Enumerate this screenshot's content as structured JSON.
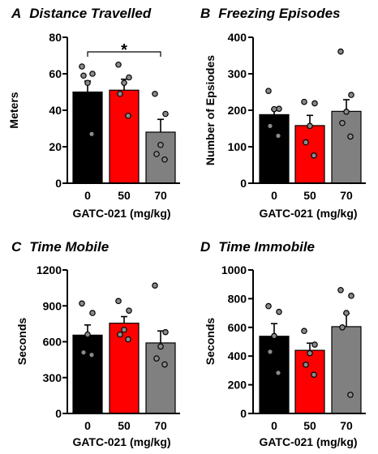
{
  "chart_data": [
    {
      "type": "bar",
      "panel_letter": "A",
      "title": "Distance Travelled",
      "xlabel": "GATC-021 (mg/kg)",
      "ylabel": "Meters",
      "categories": [
        "0",
        "50",
        "70"
      ],
      "values": [
        50,
        51,
        28
      ],
      "errors": [
        6,
        6,
        7
      ],
      "colors": [
        "#000000",
        "#ff0000",
        "#808080"
      ],
      "points": [
        [
          64,
          60,
          55,
          59,
          27
        ],
        [
          65,
          58,
          55,
          49,
          37
        ],
        [
          49,
          38,
          21,
          16,
          13
        ]
      ],
      "ylim": [
        0,
        80
      ],
      "yticks": [
        0,
        20,
        40,
        60,
        80
      ],
      "significance": {
        "label": "*",
        "from": 0,
        "to": 2,
        "y": 72
      }
    },
    {
      "type": "bar",
      "panel_letter": "B",
      "title": "Freezing Episodes",
      "xlabel": "GATC-021 (mg/kg)",
      "ylabel": "Number of Epsiodes",
      "categories": [
        "0",
        "50",
        "70"
      ],
      "values": [
        188,
        158,
        197
      ],
      "errors": [
        15,
        28,
        32
      ],
      "colors": [
        "#000000",
        "#ff0000",
        "#808080"
      ],
      "points": [
        [
          253,
          204,
          203,
          157,
          130
        ],
        [
          223,
          219,
          157,
          112,
          76
        ],
        [
          361,
          242,
          196,
          165,
          128
        ]
      ],
      "ylim": [
        0,
        400
      ],
      "yticks": [
        0,
        100,
        200,
        300,
        400
      ]
    },
    {
      "type": "bar",
      "panel_letter": "C",
      "title": "Time Mobile",
      "xlabel": "GATC-021 (mg/kg)",
      "ylabel": "Seconds",
      "categories": [
        "0",
        "50",
        "70"
      ],
      "values": [
        655,
        755,
        590
      ],
      "errors": [
        85,
        55,
        100
      ],
      "colors": [
        "#000000",
        "#ff0000",
        "#808080"
      ],
      "points": [
        [
          920,
          840,
          660,
          510,
          490
        ],
        [
          940,
          860,
          700,
          660,
          620
        ],
        [
          1070,
          680,
          560,
          460,
          410
        ]
      ],
      "ylim": [
        0,
        1200
      ],
      "yticks": [
        0,
        300,
        600,
        900,
        1200
      ]
    },
    {
      "type": "bar",
      "panel_letter": "D",
      "title": "Time Immobile",
      "xlabel": "GATC-021 (mg/kg)",
      "ylabel": "Seconds",
      "categories": [
        "0",
        "50",
        "70"
      ],
      "values": [
        538,
        440,
        605
      ],
      "errors": [
        88,
        50,
        92
      ],
      "colors": [
        "#000000",
        "#ff0000",
        "#808080"
      ],
      "points": [
        [
          748,
          708,
          540,
          430,
          283
        ],
        [
          575,
          480,
          420,
          340,
          270
        ],
        [
          860,
          820,
          700,
          600,
          130
        ]
      ],
      "ylim": [
        0,
        1000
      ],
      "yticks": [
        0,
        200,
        400,
        600,
        800,
        1000
      ]
    }
  ]
}
